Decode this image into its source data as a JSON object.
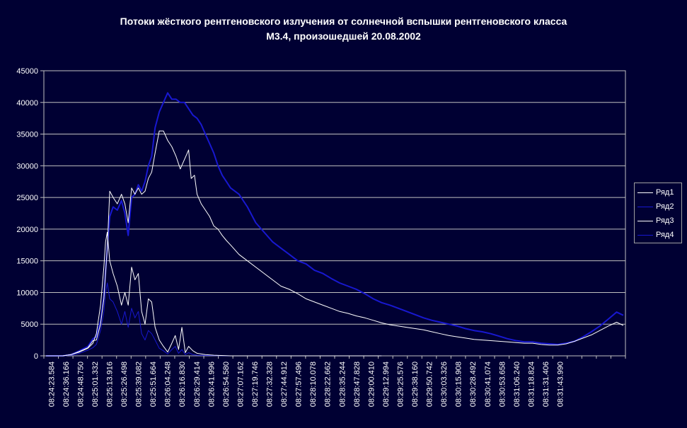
{
  "chart_data": {
    "type": "line",
    "title": [
      "Потоки жёсткого рентгеновского излучения от солнечной вспышки рентгеновского класса",
      "М3.4, произошедшей 20.08.2002"
    ],
    "xlabel": "",
    "ylabel": "",
    "ylim": [
      0,
      45000
    ],
    "yticks": [
      "0",
      "5000",
      "10000",
      "15000",
      "20000",
      "25000",
      "30000",
      "35000",
      "40000",
      "45000"
    ],
    "xticks": [
      "08:24:23.584",
      "08:24:36.166",
      "08:24:48.750",
      "08:25:01.332",
      "08:25:13.916",
      "08:25:26.498",
      "08:25:39.082",
      "08:25:51.664",
      "08:26:04.248",
      "08:26:16.830",
      "08:26:29.414",
      "08:26:41.996",
      "08:26:54.580",
      "08:27:07.162",
      "08:27:19.746",
      "08:27:32.328",
      "08:27:44.912",
      "08:27:57.496",
      "08:28:10.078",
      "08:28:22.662",
      "08:28:35.244",
      "08:28:47.828",
      "08:29:00.410",
      "08:29:12.994",
      "08:29:25.576",
      "08:29:38.160",
      "08:29:50.742",
      "08:30:03.326",
      "08:30:15.908",
      "08:30:28.492",
      "08:30:41.074",
      "08:30:53.658",
      "08:31:06.240",
      "08:31:18.824",
      "08:31:31.406",
      "08:31:43.990"
    ],
    "grid": "horizontal",
    "legend_position": "right",
    "series": [
      {
        "name": "Ряд1",
        "color": "#ffffff",
        "points": [
          [
            0,
            0
          ],
          [
            2,
            0
          ],
          [
            3,
            200
          ],
          [
            4,
            600
          ],
          [
            5,
            1200
          ],
          [
            5.6,
            2000
          ],
          [
            6,
            3500
          ],
          [
            6.5,
            8000
          ],
          [
            6.9,
            14000
          ],
          [
            7.1,
            18000
          ],
          [
            7.3,
            19500
          ],
          [
            7.6,
            15000
          ],
          [
            8,
            13000
          ],
          [
            8.5,
            11000
          ],
          [
            9,
            8000
          ],
          [
            9.4,
            10000
          ],
          [
            9.8,
            8000
          ],
          [
            10.2,
            14000
          ],
          [
            10.6,
            12000
          ],
          [
            11,
            13000
          ],
          [
            11.4,
            7000
          ],
          [
            11.8,
            5000
          ],
          [
            12.2,
            9000
          ],
          [
            12.6,
            8500
          ],
          [
            13,
            4500
          ],
          [
            13.5,
            2500
          ],
          [
            14,
            1500
          ],
          [
            14.5,
            600
          ],
          [
            15,
            2000
          ],
          [
            15.4,
            3200
          ],
          [
            15.8,
            1000
          ],
          [
            16.2,
            4500
          ],
          [
            16.6,
            500
          ],
          [
            17,
            1500
          ],
          [
            17.5,
            800
          ],
          [
            18,
            400
          ],
          [
            19,
            200
          ],
          [
            20,
            100
          ],
          [
            22,
            0
          ],
          [
            40,
            0
          ]
        ]
      },
      {
        "name": "Ряд2",
        "color": "#1818d0",
        "points": [
          [
            0,
            0
          ],
          [
            2,
            0
          ],
          [
            3,
            200
          ],
          [
            4,
            800
          ],
          [
            5,
            1500
          ],
          [
            5.6,
            2700
          ],
          [
            6,
            3000
          ],
          [
            6.5,
            5500
          ],
          [
            6.9,
            9500
          ],
          [
            7.3,
            17000
          ],
          [
            7.6,
            22000
          ],
          [
            8,
            23500
          ],
          [
            8.5,
            23000
          ],
          [
            9,
            24500
          ],
          [
            9.4,
            22500
          ],
          [
            9.8,
            19000
          ],
          [
            10.2,
            25000
          ],
          [
            10.6,
            25500
          ],
          [
            11,
            27000
          ],
          [
            11.4,
            26000
          ],
          [
            11.8,
            27500
          ],
          [
            12.2,
            30000
          ],
          [
            12.6,
            31500
          ],
          [
            13,
            36000
          ],
          [
            13.5,
            38500
          ],
          [
            14,
            40000
          ],
          [
            14.5,
            41500
          ],
          [
            15,
            40500
          ],
          [
            15.5,
            40500
          ],
          [
            16,
            40000
          ],
          [
            16.5,
            40000
          ],
          [
            17,
            39000
          ],
          [
            17.5,
            38000
          ],
          [
            18,
            37500
          ],
          [
            18.5,
            36500
          ],
          [
            19,
            35000
          ],
          [
            19.5,
            33500
          ],
          [
            20,
            32000
          ],
          [
            20.5,
            30000
          ],
          [
            21,
            28500
          ],
          [
            21.5,
            27500
          ],
          [
            22,
            26500
          ],
          [
            23,
            25500
          ],
          [
            24,
            23500
          ],
          [
            25,
            21000
          ],
          [
            26,
            19500
          ],
          [
            27,
            18000
          ],
          [
            28,
            17000
          ],
          [
            29,
            16000
          ],
          [
            30,
            15000
          ],
          [
            31,
            14500
          ],
          [
            32,
            13500
          ],
          [
            33,
            13000
          ],
          [
            34,
            12200
          ],
          [
            35,
            11500
          ],
          [
            36,
            11000
          ],
          [
            37,
            10500
          ],
          [
            38,
            9800
          ],
          [
            39,
            9000
          ],
          [
            40,
            8400
          ],
          [
            41,
            8000
          ],
          [
            42,
            7500
          ],
          [
            43,
            7000
          ],
          [
            44,
            6500
          ],
          [
            45,
            6000
          ],
          [
            46,
            5600
          ],
          [
            47,
            5300
          ],
          [
            48,
            5000
          ],
          [
            49,
            4700
          ],
          [
            50,
            4300
          ],
          [
            51,
            4000
          ],
          [
            52,
            3800
          ],
          [
            53,
            3500
          ],
          [
            54,
            3100
          ],
          [
            55,
            2700
          ],
          [
            56,
            2400
          ],
          [
            57,
            2200
          ],
          [
            58,
            2200
          ],
          [
            59,
            2000
          ],
          [
            60,
            1900
          ],
          [
            61,
            1800
          ],
          [
            62,
            2000
          ],
          [
            63,
            2300
          ],
          [
            64,
            3000
          ],
          [
            65,
            3800
          ],
          [
            66,
            4700
          ],
          [
            67,
            5800
          ],
          [
            68,
            6900
          ],
          [
            68.8,
            6400
          ]
        ]
      },
      {
        "name": "Ряд3",
        "color": "#ffffff",
        "points": [
          [
            0,
            0
          ],
          [
            2,
            0
          ],
          [
            3,
            200
          ],
          [
            4,
            700
          ],
          [
            5,
            1300
          ],
          [
            5.6,
            2400
          ],
          [
            6,
            2500
          ],
          [
            6.5,
            5000
          ],
          [
            6.9,
            9000
          ],
          [
            7.3,
            17000
          ],
          [
            7.6,
            26000
          ],
          [
            8,
            25000
          ],
          [
            8.5,
            24000
          ],
          [
            9,
            25500
          ],
          [
            9.4,
            24000
          ],
          [
            9.8,
            21000
          ],
          [
            10.2,
            26500
          ],
          [
            10.6,
            25500
          ],
          [
            11,
            26500
          ],
          [
            11.4,
            25500
          ],
          [
            11.8,
            26000
          ],
          [
            12.2,
            28000
          ],
          [
            12.6,
            29000
          ],
          [
            13,
            32000
          ],
          [
            13.5,
            35500
          ],
          [
            14,
            35500
          ],
          [
            14.5,
            34000
          ],
          [
            15,
            33000
          ],
          [
            15.5,
            31500
          ],
          [
            16,
            29500
          ],
          [
            16.5,
            31000
          ],
          [
            17,
            32500
          ],
          [
            17.3,
            28000
          ],
          [
            17.7,
            28500
          ],
          [
            18,
            25500
          ],
          [
            18.5,
            24000
          ],
          [
            19,
            23000
          ],
          [
            19.5,
            22000
          ],
          [
            20,
            20500
          ],
          [
            20.5,
            20000
          ],
          [
            21,
            19000
          ],
          [
            21.5,
            18200
          ],
          [
            22,
            17500
          ],
          [
            23,
            16000
          ],
          [
            24,
            15000
          ],
          [
            25,
            14000
          ],
          [
            26,
            13000
          ],
          [
            27,
            12000
          ],
          [
            28,
            11000
          ],
          [
            29,
            10500
          ],
          [
            30,
            9800
          ],
          [
            31,
            9000
          ],
          [
            32,
            8500
          ],
          [
            33,
            8000
          ],
          [
            34,
            7500
          ],
          [
            35,
            7000
          ],
          [
            36,
            6700
          ],
          [
            37,
            6300
          ],
          [
            38,
            6000
          ],
          [
            39,
            5600
          ],
          [
            40,
            5200
          ],
          [
            41,
            4900
          ],
          [
            42,
            4700
          ],
          [
            43,
            4500
          ],
          [
            44,
            4300
          ],
          [
            45,
            4100
          ],
          [
            46,
            3800
          ],
          [
            47,
            3500
          ],
          [
            48,
            3200
          ],
          [
            49,
            3000
          ],
          [
            50,
            2800
          ],
          [
            51,
            2600
          ],
          [
            52,
            2500
          ],
          [
            53,
            2400
          ],
          [
            54,
            2300
          ],
          [
            55,
            2200
          ],
          [
            56,
            2100
          ],
          [
            57,
            2000
          ],
          [
            58,
            2000
          ],
          [
            59,
            1800
          ],
          [
            60,
            1700
          ],
          [
            61,
            1700
          ],
          [
            62,
            1900
          ],
          [
            63,
            2300
          ],
          [
            64,
            2800
          ],
          [
            65,
            3300
          ],
          [
            66,
            4000
          ],
          [
            67,
            4700
          ],
          [
            68,
            5300
          ],
          [
            68.8,
            4800
          ]
        ]
      },
      {
        "name": "Ряд4",
        "color": "#1818d0",
        "points": [
          [
            0,
            0
          ],
          [
            2,
            0
          ],
          [
            3,
            100
          ],
          [
            4,
            400
          ],
          [
            5,
            900
          ],
          [
            5.6,
            1300
          ],
          [
            6,
            1800
          ],
          [
            6.5,
            4000
          ],
          [
            6.9,
            7000
          ],
          [
            7.1,
            10000
          ],
          [
            7.3,
            11500
          ],
          [
            7.6,
            9000
          ],
          [
            8,
            8500
          ],
          [
            8.5,
            7000
          ],
          [
            9,
            5000
          ],
          [
            9.4,
            7000
          ],
          [
            9.8,
            4500
          ],
          [
            10.2,
            7500
          ],
          [
            10.6,
            6000
          ],
          [
            11,
            7000
          ],
          [
            11.4,
            3500
          ],
          [
            11.8,
            2500
          ],
          [
            12.2,
            4000
          ],
          [
            12.6,
            3500
          ],
          [
            13,
            2500
          ],
          [
            13.5,
            1200
          ],
          [
            14,
            800
          ],
          [
            14.5,
            300
          ],
          [
            15,
            1000
          ],
          [
            15.4,
            1500
          ],
          [
            15.8,
            400
          ],
          [
            16.2,
            1000
          ],
          [
            16.6,
            200
          ],
          [
            17,
            500
          ],
          [
            17.5,
            200
          ],
          [
            18,
            100
          ],
          [
            20,
            50
          ],
          [
            22,
            0
          ],
          [
            40,
            0
          ]
        ]
      }
    ]
  }
}
